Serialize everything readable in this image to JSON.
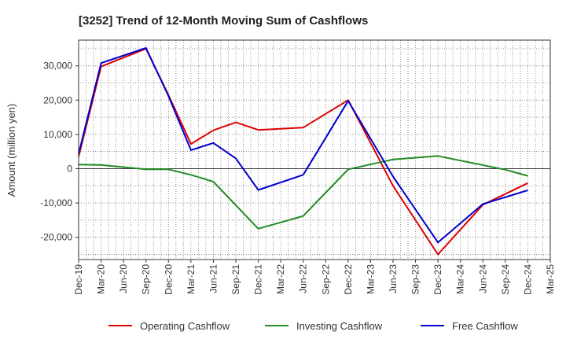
{
  "chart_data": {
    "type": "line",
    "title": "[3252]  Trend of 12-Month Moving Sum of Cashflows",
    "xlabel": "",
    "ylabel": "Amount (million yen)",
    "x_tick_labels": [
      "Dec-19",
      "Mar-20",
      "Jun-20",
      "Sep-20",
      "Dec-20",
      "Mar-21",
      "Jun-21",
      "Sep-21",
      "Dec-21",
      "Mar-22",
      "Jun-22",
      "Sep-22",
      "Dec-22",
      "Mar-23",
      "Jun-23",
      "Sep-23",
      "Dec-23",
      "Mar-24",
      "Jun-24",
      "Sep-24",
      "Dec-24",
      "Mar-25"
    ],
    "y_ticks": [
      -20000,
      -10000,
      0,
      10000,
      20000,
      30000
    ],
    "y_tick_labels": [
      "-20,000",
      "-10,000",
      "0",
      "10,000",
      "20,000",
      "30,000"
    ],
    "ylim": [
      -26500,
      37500
    ],
    "grid": true,
    "legend_position": "bottom",
    "series": [
      {
        "name": "Operating Cashflow",
        "color": "#dd0000",
        "points": [
          [
            "Dec-19",
            3500
          ],
          [
            "Mar-20",
            29800
          ],
          [
            "Sep-20",
            35000
          ],
          [
            "Dec-20",
            21500
          ],
          [
            "Mar-21",
            7200
          ],
          [
            "Jun-21",
            11200
          ],
          [
            "Sep-21",
            13500
          ],
          [
            "Dec-21",
            11300
          ],
          [
            "Jun-22",
            12000
          ],
          [
            "Dec-22",
            20000
          ],
          [
            "Jun-23",
            -5000
          ],
          [
            "Dec-23",
            -25000
          ],
          [
            "Jun-24",
            -10500
          ],
          [
            "Dec-24",
            -4200
          ]
        ]
      },
      {
        "name": "Investing Cashflow",
        "color": "#228b22",
        "points": [
          [
            "Dec-19",
            1200
          ],
          [
            "Mar-20",
            1100
          ],
          [
            "Sep-20",
            -200
          ],
          [
            "Dec-20",
            -200
          ],
          [
            "Mar-21",
            -1800
          ],
          [
            "Jun-21",
            -3800
          ],
          [
            "Dec-21",
            -17500
          ],
          [
            "Jun-22",
            -13800
          ],
          [
            "Dec-22",
            -200
          ],
          [
            "Jun-23",
            2700
          ],
          [
            "Dec-23",
            3700
          ],
          [
            "Sep-24",
            -300
          ],
          [
            "Dec-24",
            -2100
          ]
        ]
      },
      {
        "name": "Free Cashflow",
        "color": "#0000cc",
        "points": [
          [
            "Dec-19",
            4300
          ],
          [
            "Mar-20",
            30800
          ],
          [
            "Sep-20",
            35200
          ],
          [
            "Dec-20",
            21200
          ],
          [
            "Mar-21",
            5400
          ],
          [
            "Jun-21",
            7500
          ],
          [
            "Sep-21",
            3000
          ],
          [
            "Dec-21",
            -6200
          ],
          [
            "Jun-22",
            -1800
          ],
          [
            "Dec-22",
            19800
          ],
          [
            "Jun-23",
            -2300
          ],
          [
            "Dec-23",
            -21500
          ],
          [
            "Jun-24",
            -10300
          ],
          [
            "Dec-24",
            -6300
          ]
        ]
      }
    ]
  }
}
